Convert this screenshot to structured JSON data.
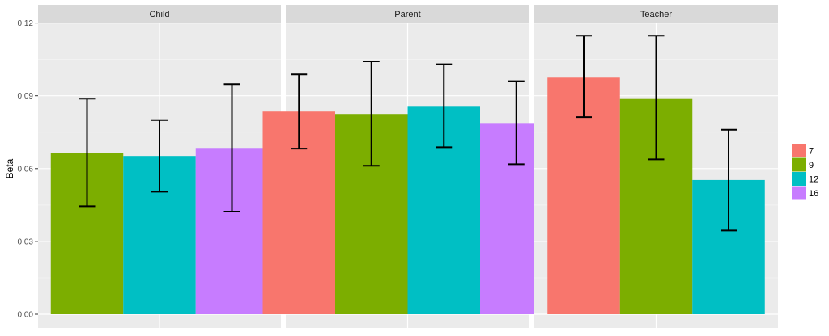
{
  "colors": {
    "panel_bg": "#EBEBEB",
    "strip_bg": "#D9D9D9",
    "grid_major": "#FFFFFF",
    "grid_minor": "#F5F5F5",
    "series": {
      "7": "#F8766D",
      "9": "#7CAE00",
      "12": "#00BFC4",
      "16": "#C77CFF"
    }
  },
  "chart_data": {
    "type": "bar",
    "ylabel": "Beta",
    "xlabel": "",
    "ylim": [
      0,
      0.12
    ],
    "yticks": [
      "0.00",
      "0.03",
      "0.06",
      "0.09",
      "0.12"
    ],
    "grid": true,
    "legend": {
      "placement": "right",
      "entries": [
        "7",
        "9",
        "12",
        "16"
      ]
    },
    "panels": [
      {
        "name": "Child",
        "bars": [
          {
            "group": "9",
            "value": 0.0665,
            "ymin": 0.0445,
            "ymax": 0.0888
          },
          {
            "group": "12",
            "value": 0.0652,
            "ymin": 0.0505,
            "ymax": 0.08
          },
          {
            "group": "16",
            "value": 0.0685,
            "ymin": 0.0423,
            "ymax": 0.0948
          }
        ]
      },
      {
        "name": "Parent",
        "bars": [
          {
            "group": "7",
            "value": 0.0835,
            "ymin": 0.0682,
            "ymax": 0.0988
          },
          {
            "group": "9",
            "value": 0.0825,
            "ymin": 0.0612,
            "ymax": 0.1042
          },
          {
            "group": "12",
            "value": 0.0858,
            "ymin": 0.0688,
            "ymax": 0.103
          },
          {
            "group": "16",
            "value": 0.0788,
            "ymin": 0.0618,
            "ymax": 0.096
          }
        ]
      },
      {
        "name": "Teacher",
        "bars": [
          {
            "group": "7",
            "value": 0.0978,
            "ymin": 0.0812,
            "ymax": 0.1148
          },
          {
            "group": "9",
            "value": 0.089,
            "ymin": 0.0638,
            "ymax": 0.1148
          },
          {
            "group": "12",
            "value": 0.0553,
            "ymin": 0.0345,
            "ymax": 0.076
          }
        ]
      }
    ]
  }
}
